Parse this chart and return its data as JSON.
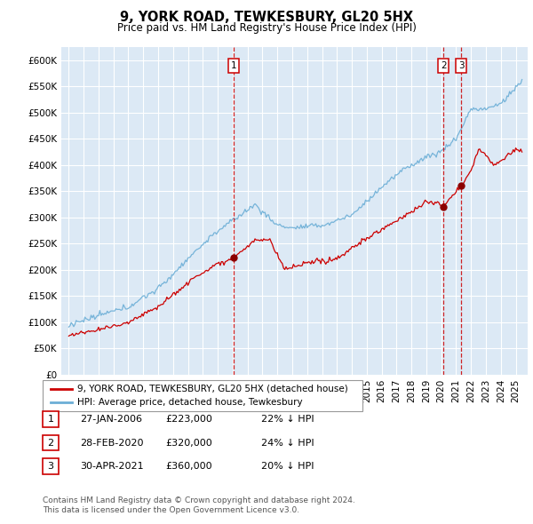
{
  "title": "9, YORK ROAD, TEWKESBURY, GL20 5HX",
  "subtitle": "Price paid vs. HM Land Registry's House Price Index (HPI)",
  "legend_line1": "9, YORK ROAD, TEWKESBURY, GL20 5HX (detached house)",
  "legend_line2": "HPI: Average price, detached house, Tewkesbury",
  "footnote1": "Contains HM Land Registry data © Crown copyright and database right 2024.",
  "footnote2": "This data is licensed under the Open Government Licence v3.0.",
  "transactions": [
    {
      "label": "1",
      "date": "27-JAN-2006",
      "price": 223000,
      "pct": "22% ↓ HPI",
      "x": 2006.08
    },
    {
      "label": "2",
      "date": "28-FEB-2020",
      "price": 320000,
      "pct": "24% ↓ HPI",
      "x": 2020.16
    },
    {
      "label": "3",
      "date": "30-APR-2021",
      "price": 360000,
      "pct": "20% ↓ HPI",
      "x": 2021.33
    }
  ],
  "hpi_color": "#6baed6",
  "price_color": "#cc0000",
  "bg_color": "#dce9f5",
  "plot_bg": "#dce9f5",
  "grid_color": "#ffffff",
  "vline_color": "#cc0000",
  "marker_color": "#8b0000",
  "ylim": [
    0,
    625000
  ],
  "yticks": [
    0,
    50000,
    100000,
    150000,
    200000,
    250000,
    300000,
    350000,
    400000,
    450000,
    500000,
    550000,
    600000
  ],
  "xlim_start": 1994.5,
  "xlim_end": 2025.8
}
